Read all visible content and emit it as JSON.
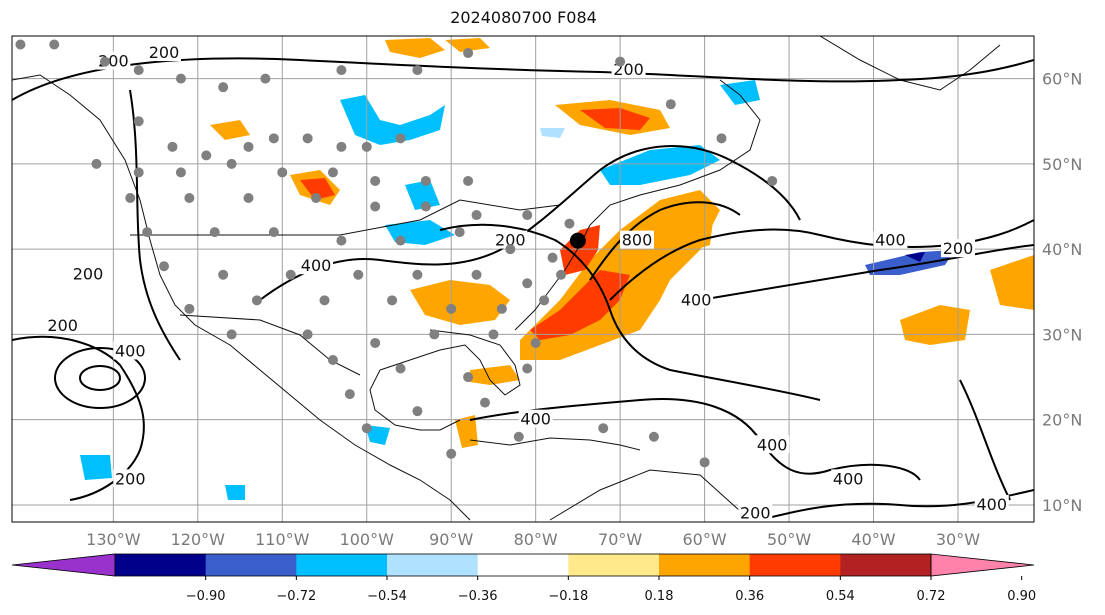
{
  "title": "2024080700 F084",
  "map": {
    "lon_range": [
      -142,
      -21
    ],
    "lat_range": [
      8,
      65
    ],
    "grid_lons": [
      -130,
      -120,
      -110,
      -100,
      -90,
      -80,
      -70,
      -60,
      -50,
      -40,
      -30
    ],
    "grid_lats": [
      10,
      20,
      30,
      40,
      50,
      60
    ],
    "lon_labels": [
      "130°W",
      "120°W",
      "110°W",
      "100°W",
      "90°W",
      "80°W",
      "70°W",
      "60°W",
      "50°W",
      "40°W",
      "30°W"
    ],
    "lat_labels": [
      "10°N",
      "20°N",
      "30°N",
      "40°N",
      "50°N",
      "60°N"
    ],
    "contour_labels": [
      {
        "text": "200",
        "lon": -130,
        "lat": 62
      },
      {
        "text": "200",
        "lon": -124,
        "lat": 63
      },
      {
        "text": "200",
        "lon": -69,
        "lat": 61
      },
      {
        "text": "200",
        "lon": -133,
        "lat": 37
      },
      {
        "text": "200",
        "lon": -136,
        "lat": 31
      },
      {
        "text": "400",
        "lon": -128,
        "lat": 28
      },
      {
        "text": "400",
        "lon": -106,
        "lat": 38
      },
      {
        "text": "200",
        "lon": -83,
        "lat": 41
      },
      {
        "text": "800",
        "lon": -68,
        "lat": 41
      },
      {
        "text": "400",
        "lon": -61,
        "lat": 34
      },
      {
        "text": "400",
        "lon": -38,
        "lat": 41
      },
      {
        "text": "200",
        "lon": -30,
        "lat": 40
      },
      {
        "text": "400",
        "lon": -80,
        "lat": 20
      },
      {
        "text": "400",
        "lon": -52,
        "lat": 17
      },
      {
        "text": "400",
        "lon": -43,
        "lat": 13
      },
      {
        "text": "200",
        "lon": -128,
        "lat": 13
      },
      {
        "text": "400",
        "lon": -26,
        "lat": 10
      },
      {
        "text": "200",
        "lon": -54,
        "lat": 9
      }
    ],
    "storm_center": {
      "lon": -75,
      "lat": 41
    },
    "station_points": [
      [
        -141,
        64
      ],
      [
        -137,
        64
      ],
      [
        -131,
        62
      ],
      [
        -127,
        61
      ],
      [
        -122,
        60
      ],
      [
        -117,
        59
      ],
      [
        -112,
        60
      ],
      [
        -103,
        61
      ],
      [
        -94,
        61
      ],
      [
        -88,
        63
      ],
      [
        -127,
        55
      ],
      [
        -123,
        52
      ],
      [
        -119,
        51
      ],
      [
        -114,
        52
      ],
      [
        -111,
        53
      ],
      [
        -107,
        53
      ],
      [
        -103,
        52
      ],
      [
        -100,
        52
      ],
      [
        -96,
        53
      ],
      [
        -132,
        50
      ],
      [
        -127,
        49
      ],
      [
        -122,
        49
      ],
      [
        -116,
        50
      ],
      [
        -110,
        49
      ],
      [
        -104,
        49
      ],
      [
        -99,
        48
      ],
      [
        -93,
        48
      ],
      [
        -88,
        48
      ],
      [
        -128,
        46
      ],
      [
        -121,
        46
      ],
      [
        -114,
        46
      ],
      [
        -106,
        46
      ],
      [
        -99,
        45
      ],
      [
        -93,
        45
      ],
      [
        -87,
        44
      ],
      [
        -81,
        44
      ],
      [
        -76,
        43
      ],
      [
        -126,
        42
      ],
      [
        -118,
        42
      ],
      [
        -111,
        42
      ],
      [
        -103,
        41
      ],
      [
        -96,
        41
      ],
      [
        -89,
        42
      ],
      [
        -83,
        40
      ],
      [
        -78,
        39
      ],
      [
        -124,
        38
      ],
      [
        -117,
        37
      ],
      [
        -109,
        37
      ],
      [
        -101,
        37
      ],
      [
        -94,
        37
      ],
      [
        -87,
        37
      ],
      [
        -81,
        36
      ],
      [
        -77,
        37
      ],
      [
        -121,
        33
      ],
      [
        -113,
        34
      ],
      [
        -105,
        34
      ],
      [
        -97,
        34
      ],
      [
        -90,
        33
      ],
      [
        -84,
        33
      ],
      [
        -79,
        34
      ],
      [
        -116,
        30
      ],
      [
        -107,
        30
      ],
      [
        -99,
        29
      ],
      [
        -92,
        30
      ],
      [
        -85,
        30
      ],
      [
        -80,
        29
      ],
      [
        -104,
        27
      ],
      [
        -96,
        26
      ],
      [
        -88,
        25
      ],
      [
        -81,
        26
      ],
      [
        -102,
        23
      ],
      [
        -94,
        21
      ],
      [
        -86,
        22
      ],
      [
        -100,
        19
      ],
      [
        -90,
        16
      ],
      [
        -82,
        18
      ],
      [
        -72,
        19
      ],
      [
        -66,
        18
      ],
      [
        -60,
        15
      ],
      [
        -70,
        62
      ],
      [
        -64,
        57
      ],
      [
        -58,
        53
      ],
      [
        -52,
        48
      ]
    ]
  },
  "colorbar": {
    "ticks": [
      "−0.90",
      "−0.72",
      "−0.54",
      "−0.36",
      "−0.18",
      "0.18",
      "0.36",
      "0.54",
      "0.72",
      "0.90"
    ],
    "colors": [
      "#9932cc",
      "#00008b",
      "#3a5fcd",
      "#00bfff",
      "#b0e2ff",
      "#ffffff",
      "#ffe98a",
      "#ffa500",
      "#ff3c00",
      "#b22222",
      "#ff82ab"
    ]
  }
}
